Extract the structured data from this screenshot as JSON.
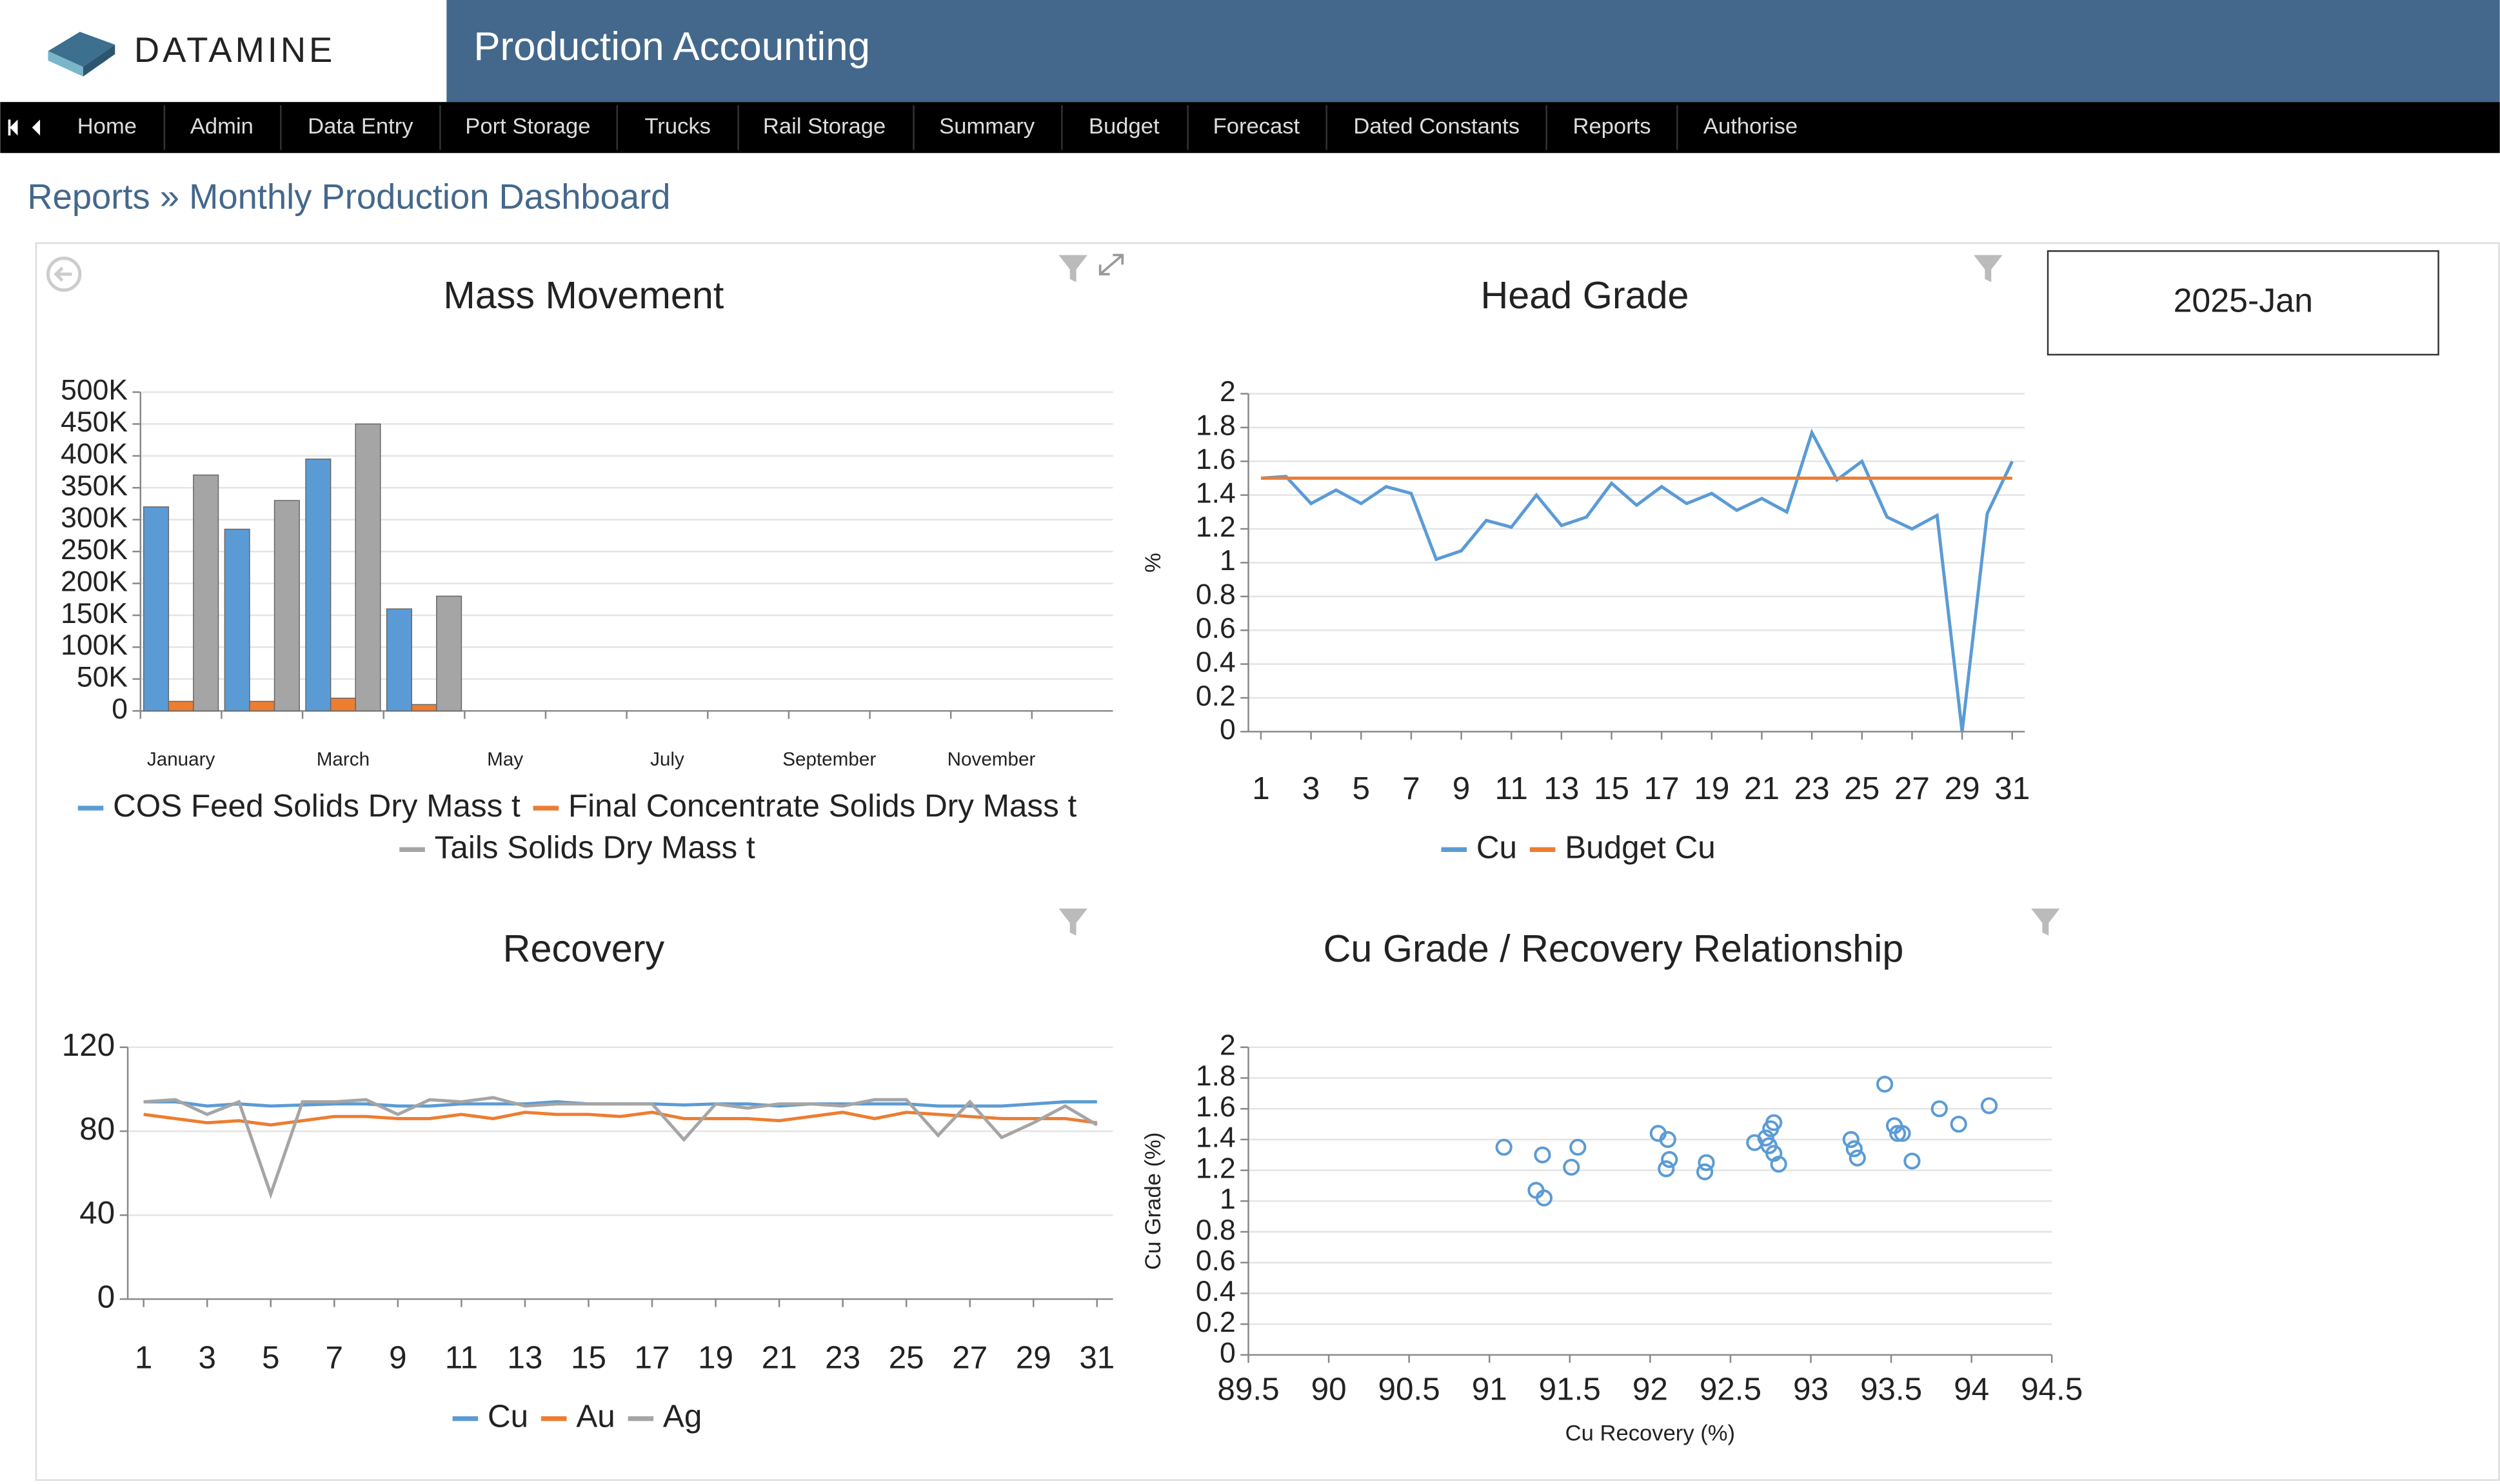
{
  "header": {
    "logo": "DATAMINE",
    "title": "Production Accounting"
  },
  "nav": {
    "items": [
      "Home",
      "Admin",
      "Data Entry",
      "Port Storage",
      "Trucks",
      "Rail Storage",
      "Summary",
      "Budget",
      "Forecast",
      "Dated Constants",
      "Reports",
      "Authorise"
    ]
  },
  "breadcrumb": "Reports » Monthly Production Dashboard",
  "period": "2025-Jan",
  "chart_data": [
    {
      "type": "bar",
      "title": "Mass Movement",
      "categories": [
        "January",
        null,
        "March",
        null,
        "May",
        null,
        "July",
        null,
        "September",
        null,
        "November",
        null
      ],
      "series": [
        {
          "name": "COS Feed Solids Dry Mass t",
          "color": "#5b9bd5",
          "values": [
            320000,
            285000,
            395000,
            160000,
            null,
            null,
            null,
            null,
            null,
            null,
            null,
            null
          ]
        },
        {
          "name": "Final Concentrate Solids Dry Mass t",
          "color": "#ed7d31",
          "values": [
            15000,
            15000,
            20000,
            10000,
            null,
            null,
            null,
            null,
            null,
            null,
            null,
            null
          ]
        },
        {
          "name": "Tails Solids Dry Mass t",
          "color": "#a5a5a5",
          "values": [
            370000,
            330000,
            450000,
            180000,
            null,
            null,
            null,
            null,
            null,
            null,
            null,
            null
          ]
        }
      ],
      "ylim": [
        0,
        500000
      ],
      "yticks": [
        0,
        {
          "value": 50000,
          "label": "50K"
        },
        {
          "value": 100000,
          "label": "100K"
        },
        {
          "value": 150000,
          "label": "150K"
        },
        {
          "value": 200000,
          "label": "200K"
        },
        {
          "value": 250000,
          "label": "250K"
        },
        {
          "value": 300000,
          "label": "300K"
        },
        {
          "value": 350000,
          "label": "350K"
        },
        {
          "value": 400000,
          "label": "400K"
        },
        {
          "value": 450000,
          "label": "450K"
        },
        {
          "value": 500000,
          "label": "500K"
        }
      ],
      "grid": true,
      "legend": "bottom"
    },
    {
      "type": "line",
      "title": "Head Grade",
      "ylabel": "%",
      "x": [
        1,
        2,
        3,
        4,
        5,
        6,
        7,
        8,
        9,
        10,
        11,
        12,
        13,
        14,
        15,
        16,
        17,
        18,
        19,
        20,
        21,
        22,
        23,
        24,
        25,
        26,
        27,
        28,
        29,
        30,
        31
      ],
      "xlim": [
        0.5,
        31.5
      ],
      "xticks": [
        1,
        3,
        5,
        7,
        9,
        11,
        13,
        15,
        17,
        19,
        21,
        23,
        25,
        27,
        29,
        31
      ],
      "series": [
        {
          "name": "Cu",
          "color": "#5b9bd5",
          "values": [
            1.5,
            1.51,
            1.35,
            1.43,
            1.35,
            1.45,
            1.41,
            1.02,
            1.07,
            1.25,
            1.21,
            1.4,
            1.22,
            1.27,
            1.47,
            1.34,
            1.45,
            1.35,
            1.41,
            1.31,
            1.38,
            1.3,
            1.77,
            1.49,
            1.6,
            1.27,
            1.2,
            1.28,
            0,
            1.29,
            1.6
          ]
        },
        {
          "name": "Budget Cu",
          "color": "#ed7d31",
          "values": [
            1.5,
            1.5,
            1.5,
            1.5,
            1.5,
            1.5,
            1.5,
            1.5,
            1.5,
            1.5,
            1.5,
            1.5,
            1.5,
            1.5,
            1.5,
            1.5,
            1.5,
            1.5,
            1.5,
            1.5,
            1.5,
            1.5,
            1.5,
            1.5,
            1.5,
            1.5,
            1.5,
            1.5,
            1.5,
            1.5,
            1.5
          ]
        }
      ],
      "ylim": [
        0,
        2
      ],
      "yticks": [
        0,
        0.2,
        0.4,
        0.6,
        0.8,
        1,
        1.2,
        1.4,
        1.6,
        1.8,
        2
      ],
      "grid": true,
      "legend": "bottom"
    },
    {
      "type": "line",
      "title": "Recovery",
      "x": [
        1,
        2,
        3,
        4,
        5,
        6,
        7,
        8,
        9,
        10,
        11,
        12,
        13,
        14,
        15,
        16,
        17,
        18,
        19,
        20,
        21,
        22,
        23,
        24,
        25,
        26,
        27,
        28,
        29,
        30,
        31
      ],
      "xlim": [
        0.5,
        31.5
      ],
      "xticks": [
        1,
        3,
        5,
        7,
        9,
        11,
        13,
        15,
        17,
        19,
        21,
        23,
        25,
        27,
        29,
        31
      ],
      "series": [
        {
          "name": "Cu",
          "color": "#5b9bd5",
          "values": [
            94,
            94,
            92,
            93,
            92,
            92.5,
            93,
            93,
            92,
            92,
            93,
            93,
            93,
            94,
            93,
            93,
            93,
            92.5,
            93,
            93,
            92,
            93,
            93,
            93,
            93,
            92,
            92,
            92,
            93,
            94,
            94
          ]
        },
        {
          "name": "Au",
          "color": "#ed7d31",
          "values": [
            88,
            86,
            84,
            85,
            83,
            85,
            87,
            87,
            86,
            86,
            88,
            86,
            89,
            88,
            88,
            87,
            89,
            86,
            86,
            86,
            85,
            87,
            89,
            86,
            89,
            88,
            87,
            86,
            86,
            86,
            84
          ]
        },
        {
          "name": "Ag",
          "color": "#a5a5a5",
          "values": [
            94,
            95,
            88,
            94,
            50,
            94,
            94,
            95,
            88,
            95,
            94,
            96,
            92,
            93,
            93,
            93,
            93,
            76,
            93,
            91,
            93,
            93,
            92,
            95,
            95,
            78,
            94,
            77,
            84,
            92,
            83
          ]
        }
      ],
      "ylim": [
        0,
        120
      ],
      "yticks": [
        0,
        40,
        80,
        120
      ],
      "grid": true,
      "legend": "bottom"
    },
    {
      "type": "scatter",
      "title": "Cu Grade / Recovery Relationship",
      "xlabel": "Cu Recovery (%)",
      "ylabel": "Cu Grade (%)",
      "x": [
        91.09,
        91.29,
        91.34,
        91.33,
        91.55,
        91.51,
        92.05,
        92.11,
        92.12,
        92.1,
        92.35,
        92.34,
        92.65,
        92.72,
        92.77,
        92.75,
        92.74,
        92.77,
        92.8,
        93.25,
        93.27,
        93.29,
        93.46,
        93.52,
        93.54,
        93.57,
        93.63,
        93.8,
        93.92,
        94.11
      ],
      "values": [
        1.35,
        1.07,
        1.02,
        1.3,
        1.35,
        1.22,
        1.44,
        1.4,
        1.27,
        1.21,
        1.25,
        1.19,
        1.38,
        1.41,
        1.51,
        1.47,
        1.36,
        1.31,
        1.24,
        1.4,
        1.34,
        1.28,
        1.76,
        1.49,
        1.44,
        1.44,
        1.26,
        1.6,
        1.5,
        1.62
      ],
      "color": "#5b9bd5",
      "xlim": [
        89.5,
        94.5
      ],
      "xticks": [
        89.5,
        90,
        90.5,
        91,
        91.5,
        92,
        92.5,
        93,
        93.5,
        94,
        94.5
      ],
      "ylim": [
        0,
        2
      ],
      "yticks": [
        0,
        0.2,
        0.4,
        0.6,
        0.8,
        1,
        1.2,
        1.4,
        1.6,
        1.8,
        2
      ],
      "grid": true
    }
  ]
}
